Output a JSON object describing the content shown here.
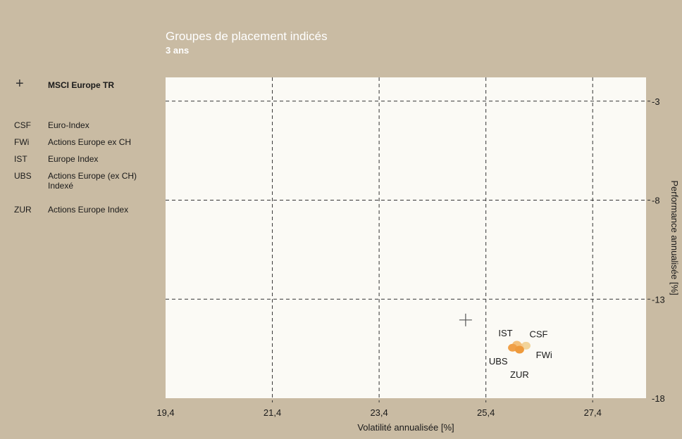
{
  "chart_data": {
    "type": "scatter",
    "title": "Groupes de placement indicés",
    "subtitle": "3 ans",
    "xlabel": "Volatilité annualisée [%]",
    "ylabel": "Performance annualisée [%]",
    "xlim": [
      19.4,
      28.4
    ],
    "ylim": [
      -18,
      -1.8
    ],
    "xticks": [
      {
        "value": 19.4,
        "label": "19,4"
      },
      {
        "value": 21.4,
        "label": "21,4"
      },
      {
        "value": 23.4,
        "label": "23,4"
      },
      {
        "value": 25.4,
        "label": "25,4"
      },
      {
        "value": 27.4,
        "label": "27,4"
      }
    ],
    "yticks": [
      {
        "value": -3,
        "label": "-3"
      },
      {
        "value": -8,
        "label": "-8"
      },
      {
        "value": -13,
        "label": "-13"
      },
      {
        "value": -18,
        "label": "-18"
      }
    ],
    "grid": true,
    "benchmark": {
      "code": "",
      "name": "MSCI Europe TR",
      "x": 25.02,
      "y": -14.05
    },
    "points": [
      {
        "code": "CSF",
        "name": "Euro-Index",
        "x": 26.15,
        "y": -15.35,
        "color": "#f2d49a"
      },
      {
        "code": "FWi",
        "name": "Actions Europe ex CH",
        "x": 26.02,
        "y": -15.4,
        "color": "#f6c98a"
      },
      {
        "code": "IST",
        "name": "Europe Index",
        "x": 25.98,
        "y": -15.3,
        "color": "#f4c07a"
      },
      {
        "code": "UBS",
        "name": "Actions Europe (ex CH) Indexé",
        "x": 25.9,
        "y": -15.45,
        "color": "#f0a048"
      },
      {
        "code": "ZUR",
        "name": "Actions Europe Index",
        "x": 26.03,
        "y": -15.55,
        "color": "#ee9a3c"
      }
    ],
    "colors": {
      "background": "#c9bba3",
      "plot": "#fbfaf5",
      "grid": "#333333"
    }
  }
}
